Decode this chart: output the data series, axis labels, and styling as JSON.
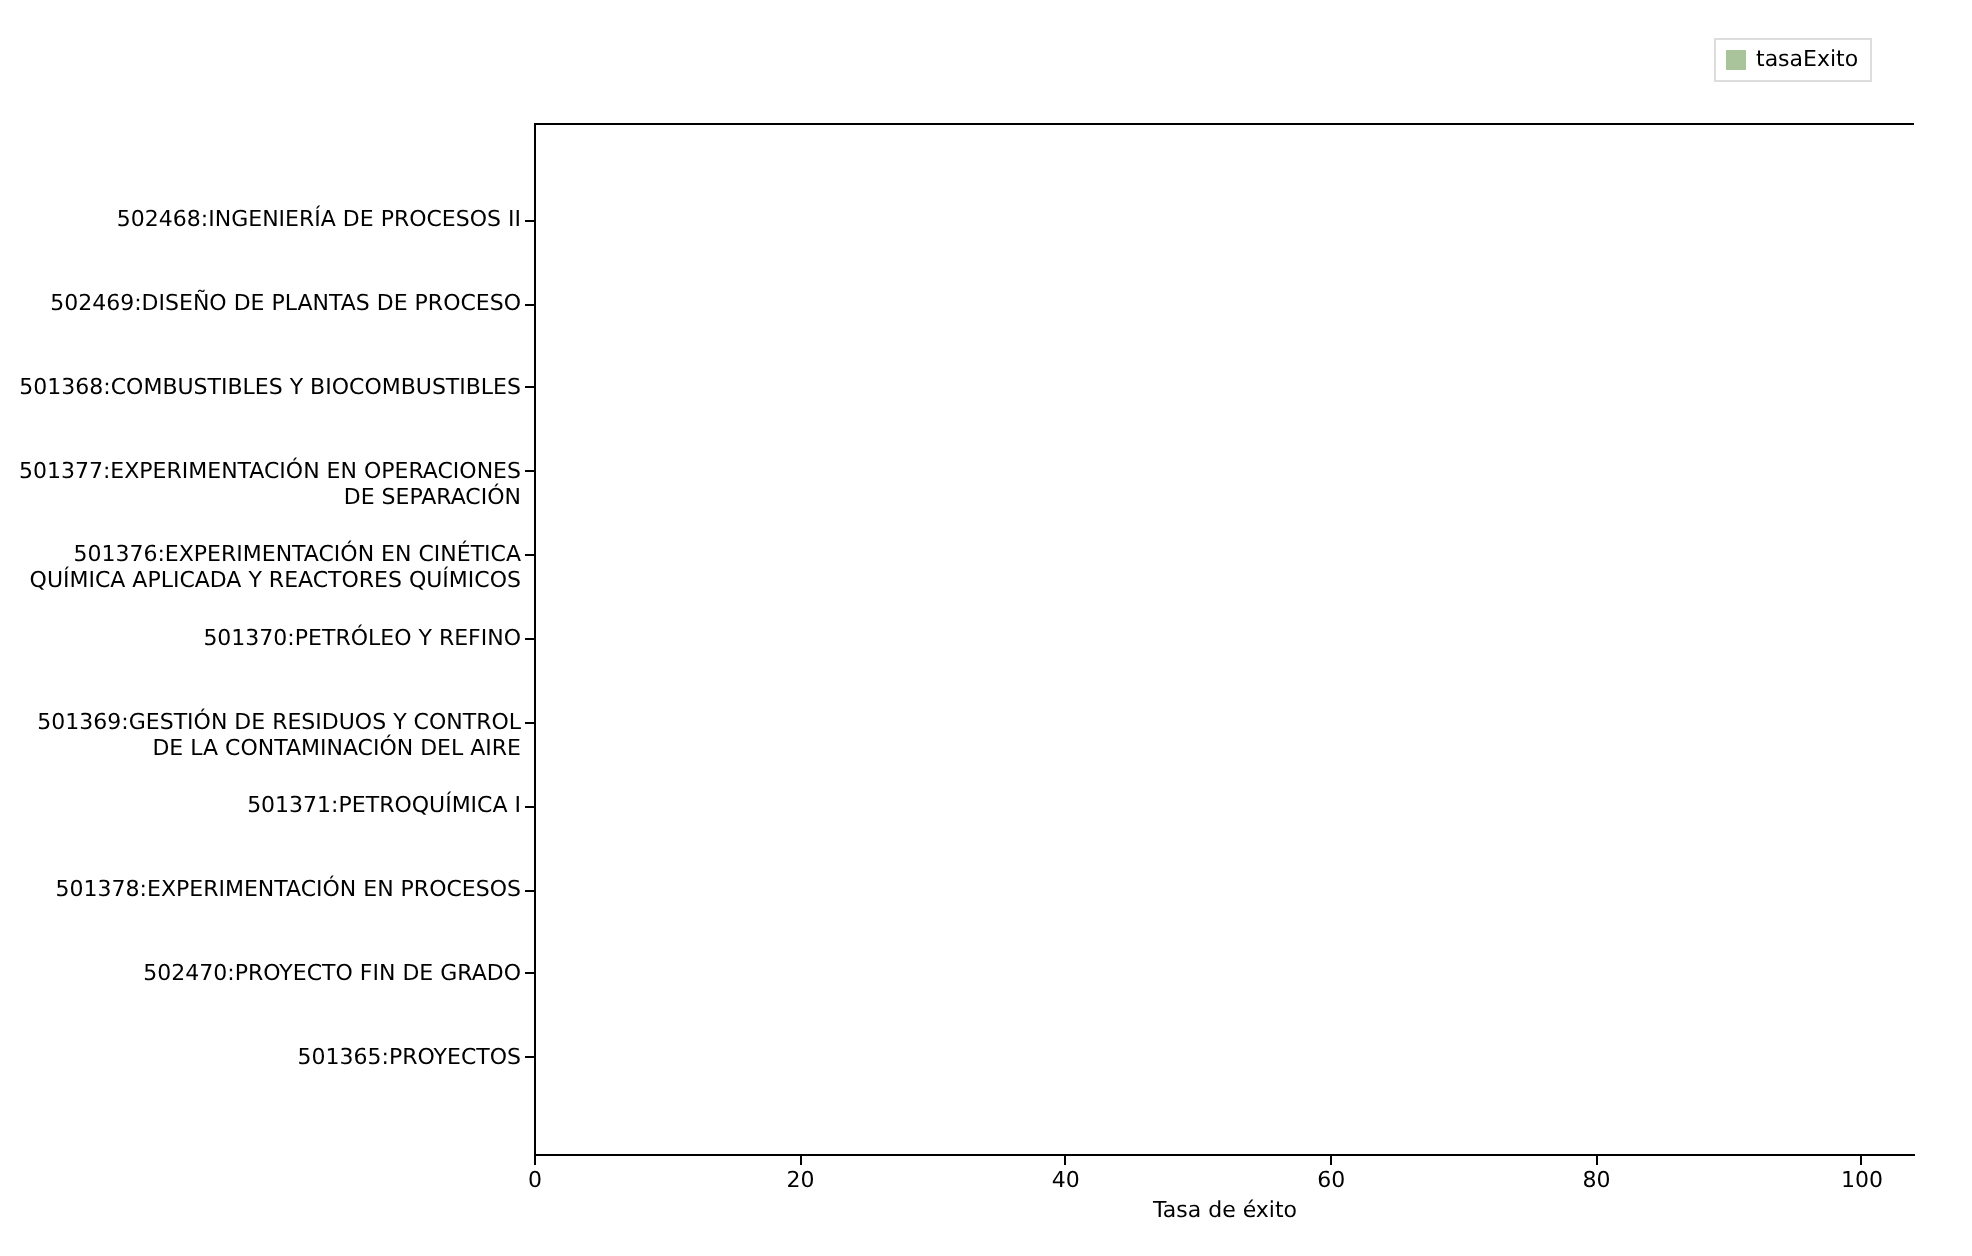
{
  "chart_data": {
    "type": "bar",
    "orientation": "horizontal",
    "xlabel": "Tasa de éxito",
    "categories": [
      "502468:INGENIERÍA DE PROCESOS II",
      "502469:DISEÑO DE PLANTAS DE PROCESO",
      "501368:COMBUSTIBLES Y BIOCOMBUSTIBLES",
      "501377:EXPERIMENTACIÓN EN OPERACIONES DE SEPARACIÓN",
      "501376:EXPERIMENTACIÓN EN CINÉTICA QUÍMICA APLICADA Y REACTORES QUÍMICOS",
      "501370:PETRÓLEO Y REFINO",
      "501369:GESTIÓN DE RESIDUOS Y CONTROL DE LA CONTAMINACIÓN DEL AIRE",
      "501371:PETROQUÍMICA I",
      "501378:EXPERIMENTACIÓN EN PROCESOS",
      "502470:PROYECTO FIN DE GRADO",
      "501365:PROYECTOS"
    ],
    "series": [
      {
        "name": "tasaExito",
        "color": "#a9c49a",
        "values": [
          0,
          0,
          0,
          0,
          0,
          0,
          0,
          0,
          0,
          0,
          0
        ]
      }
    ],
    "xlim": [
      0,
      104
    ],
    "xticks": [
      0,
      20,
      40,
      60,
      80,
      100
    ],
    "grid": false,
    "legend": "top right"
  }
}
